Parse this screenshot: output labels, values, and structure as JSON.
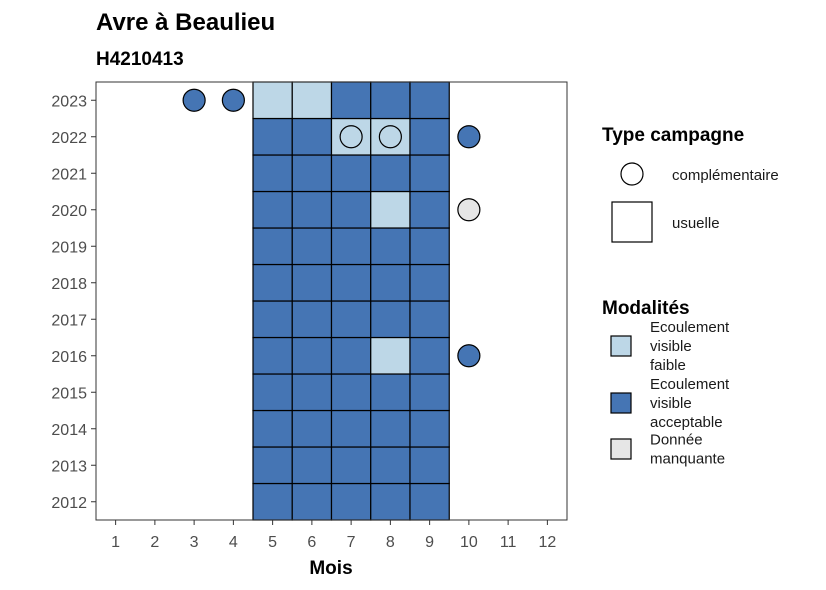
{
  "chart_data": {
    "type": "heatmap",
    "title": "Avre à Beaulieu",
    "subtitle": "H4210413",
    "xlabel": "Mois",
    "ylabel": "",
    "x_ticks": [
      "1",
      "2",
      "3",
      "4",
      "5",
      "6",
      "7",
      "8",
      "9",
      "10",
      "11",
      "12"
    ],
    "y_ticks": [
      "2012",
      "2013",
      "2014",
      "2015",
      "2016",
      "2017",
      "2018",
      "2019",
      "2020",
      "2021",
      "2022",
      "2023"
    ],
    "xlim": [
      0.5,
      12.5
    ],
    "ylim": [
      2011.5,
      2023.5
    ],
    "colors": {
      "faible": "#bdd7e7",
      "acceptable": "#4575b4",
      "manquante": "#e6e6e6"
    },
    "legend_type": {
      "title": "Type campagne",
      "items": [
        {
          "label": "complémentaire",
          "shape": "circle"
        },
        {
          "label": "usuelle",
          "shape": "square"
        }
      ]
    },
    "legend_modalite": {
      "title": "Modalités",
      "items": [
        {
          "key": "faible",
          "lines": [
            "Ecoulement",
            "visible",
            "faible"
          ]
        },
        {
          "key": "acceptable",
          "lines": [
            "Ecoulement",
            "visible",
            "acceptable"
          ]
        },
        {
          "key": "manquante",
          "lines": [
            "Donnée",
            "manquante"
          ]
        }
      ]
    },
    "usuelle": [
      {
        "year": 2012,
        "months": [
          "acceptable",
          "acceptable",
          "acceptable",
          "acceptable",
          "acceptable"
        ]
      },
      {
        "year": 2013,
        "months": [
          "acceptable",
          "acceptable",
          "acceptable",
          "acceptable",
          "acceptable"
        ]
      },
      {
        "year": 2014,
        "months": [
          "acceptable",
          "acceptable",
          "acceptable",
          "acceptable",
          "acceptable"
        ]
      },
      {
        "year": 2015,
        "months": [
          "acceptable",
          "acceptable",
          "acceptable",
          "acceptable",
          "acceptable"
        ]
      },
      {
        "year": 2016,
        "months": [
          "acceptable",
          "acceptable",
          "acceptable",
          "faible",
          "acceptable"
        ]
      },
      {
        "year": 2017,
        "months": [
          "acceptable",
          "acceptable",
          "acceptable",
          "acceptable",
          "acceptable"
        ]
      },
      {
        "year": 2018,
        "months": [
          "acceptable",
          "acceptable",
          "acceptable",
          "acceptable",
          "acceptable"
        ]
      },
      {
        "year": 2019,
        "months": [
          "acceptable",
          "acceptable",
          "acceptable",
          "acceptable",
          "acceptable"
        ]
      },
      {
        "year": 2020,
        "months": [
          "acceptable",
          "acceptable",
          "acceptable",
          "faible",
          "acceptable"
        ]
      },
      {
        "year": 2021,
        "months": [
          "acceptable",
          "acceptable",
          "acceptable",
          "acceptable",
          "acceptable"
        ]
      },
      {
        "year": 2022,
        "months": [
          "acceptable",
          "acceptable",
          "faible",
          "faible",
          "acceptable"
        ]
      },
      {
        "year": 2023,
        "months": [
          "faible",
          "faible",
          "acceptable",
          "acceptable",
          "acceptable"
        ]
      }
    ],
    "usuelle_first_month": 5,
    "complementaire": [
      {
        "year": 2023,
        "month": 3,
        "modalite": "acceptable"
      },
      {
        "year": 2023,
        "month": 4,
        "modalite": "acceptable"
      },
      {
        "year": 2022,
        "month": 7,
        "modalite": "faible"
      },
      {
        "year": 2022,
        "month": 8,
        "modalite": "faible"
      },
      {
        "year": 2022,
        "month": 10,
        "modalite": "acceptable"
      },
      {
        "year": 2020,
        "month": 10,
        "modalite": "manquante"
      },
      {
        "year": 2016,
        "month": 10,
        "modalite": "acceptable"
      }
    ]
  }
}
